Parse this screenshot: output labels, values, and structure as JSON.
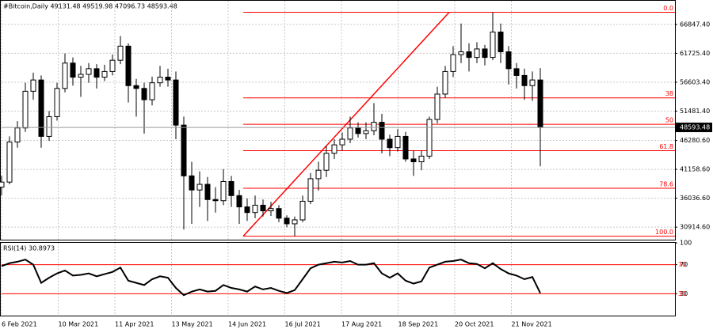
{
  "chart_data": [
    {
      "type": "candlestick",
      "title": "#Bitcoin,Daily 49131.48 49519.98 47096.73 48593.48",
      "ylim": [
        28690,
        70900
      ],
      "yticks": [
        {
          "value": 66847.4,
          "label": "66847.40"
        },
        {
          "value": 61725.4,
          "label": "61725.40"
        },
        {
          "value": 56603.4,
          "label": "56603.40"
        },
        {
          "value": 51481.4,
          "label": "51481.40"
        },
        {
          "value": 46280.6,
          "label": "46280.60"
        },
        {
          "value": 41158.6,
          "label": "41158.60"
        },
        {
          "value": 36036.6,
          "label": "36036.60"
        },
        {
          "value": 30914.6,
          "label": "30914.60"
        }
      ],
      "date_labels": [
        "6 Feb 2021",
        "10 Mar 2021",
        "11 Apr 2021",
        "13 May 2021",
        "14 Jun 2021",
        "16 Jul 2021",
        "17 Aug 2021",
        "18 Sep 2021",
        "20 Oct 2021",
        "21 Nov 2021"
      ],
      "grid": true,
      "fib_color": "#ff0000",
      "fib_levels": [
        {
          "name": "0.0",
          "price": 69000
        },
        {
          "name": "38",
          "price": 53835
        },
        {
          "name": "50",
          "price": 49150
        },
        {
          "name": "61.8",
          "price": 44465
        },
        {
          "name": "78.6",
          "price": 37800
        },
        {
          "name": "100.0",
          "price": 29300
        }
      ],
      "ohlc": [
        [
          38000,
          40000,
          36500,
          38900
        ],
        [
          38900,
          47000,
          38500,
          46000
        ],
        [
          46000,
          49700,
          45000,
          48500
        ],
        [
          48500,
          56500,
          47800,
          55000
        ],
        [
          55000,
          58300,
          53500,
          57000
        ],
        [
          57000,
          57800,
          45000,
          47000
        ],
        [
          47000,
          51500,
          46200,
          50500
        ],
        [
          50500,
          56500,
          49800,
          55500
        ],
        [
          55500,
          61700,
          54800,
          60000
        ],
        [
          60000,
          61000,
          56000,
          57500
        ],
        [
          57500,
          59500,
          54000,
          58000
        ],
        [
          58000,
          60000,
          56500,
          59000
        ],
        [
          59000,
          59800,
          55500,
          57500
        ],
        [
          57500,
          59700,
          56800,
          58500
        ],
        [
          58500,
          61500,
          57800,
          60500
        ],
        [
          60500,
          64800,
          59800,
          63000
        ],
        [
          63000,
          63500,
          53000,
          56000
        ],
        [
          56000,
          57200,
          50500,
          55500
        ],
        [
          55500,
          56500,
          47500,
          53500
        ],
        [
          53500,
          57600,
          52500,
          56500
        ],
        [
          56500,
          59500,
          55800,
          57500
        ],
        [
          57500,
          59000,
          55800,
          57000
        ],
        [
          57000,
          58500,
          46500,
          49000
        ],
        [
          49000,
          50500,
          30500,
          40000
        ],
        [
          40000,
          42500,
          31500,
          37500
        ],
        [
          37500,
          40800,
          34500,
          38500
        ],
        [
          38500,
          39800,
          32000,
          35800
        ],
        [
          35800,
          38000,
          33500,
          35600
        ],
        [
          35600,
          41200,
          34800,
          39000
        ],
        [
          39000,
          40000,
          34500,
          36500
        ],
        [
          36500,
          37500,
          31500,
          34500
        ],
        [
          34500,
          36000,
          32000,
          33500
        ],
        [
          33500,
          36500,
          32500,
          34800
        ],
        [
          34800,
          35800,
          32800,
          33800
        ],
        [
          33800,
          35400,
          32900,
          34200
        ],
        [
          34200,
          34800,
          31800,
          32500
        ],
        [
          32500,
          33000,
          30900,
          31500
        ],
        [
          31500,
          32800,
          29300,
          32200
        ],
        [
          32200,
          36500,
          31800,
          35500
        ],
        [
          35500,
          40500,
          35000,
          39500
        ],
        [
          39500,
          42500,
          37400,
          41000
        ],
        [
          41000,
          45300,
          39800,
          44000
        ],
        [
          44000,
          46500,
          43000,
          45500
        ],
        [
          45500,
          47700,
          44500,
          46500
        ],
        [
          46500,
          50500,
          45800,
          48500
        ],
        [
          48500,
          49500,
          46800,
          47500
        ],
        [
          47500,
          49500,
          46500,
          48000
        ],
        [
          48000,
          52900,
          47200,
          49500
        ],
        [
          49500,
          51000,
          44000,
          46500
        ],
        [
          46500,
          47300,
          43500,
          45000
        ],
        [
          45000,
          48300,
          44300,
          47000
        ],
        [
          47000,
          47800,
          42500,
          43000
        ],
        [
          43000,
          44500,
          40000,
          42500
        ],
        [
          42500,
          44500,
          41000,
          43500
        ],
        [
          43500,
          50500,
          43000,
          50000
        ],
        [
          50000,
          55800,
          49300,
          54500
        ],
        [
          54500,
          59500,
          53800,
          58500
        ],
        [
          58500,
          63000,
          57500,
          61500
        ],
        [
          61500,
          67000,
          60000,
          62000
        ],
        [
          62000,
          63500,
          58500,
          61000
        ],
        [
          61000,
          63700,
          60000,
          62500
        ],
        [
          62500,
          63200,
          59600,
          61000
        ],
        [
          61000,
          69000,
          60500,
          65500
        ],
        [
          65500,
          67000,
          60000,
          62000
        ],
        [
          62000,
          63000,
          56200,
          59000
        ],
        [
          59000,
          60000,
          55500,
          57800
        ],
        [
          57800,
          59000,
          53500,
          56000
        ],
        [
          56000,
          58500,
          53300,
          57000
        ],
        [
          57000,
          59100,
          41700,
          48593.48
        ]
      ]
    },
    {
      "type": "line",
      "title": "RSI(14)",
      "color": "#000000",
      "level_color": "#ff0000",
      "ylim": [
        0,
        100
      ],
      "yticks": [
        100,
        70,
        30
      ],
      "levels": [
        70,
        30
      ],
      "values": [
        68,
        72,
        74,
        77,
        70,
        45,
        52,
        58,
        62,
        55,
        56,
        58,
        54,
        57,
        60,
        66,
        48,
        45,
        42,
        50,
        54,
        52,
        38,
        28,
        33,
        36,
        33,
        34,
        42,
        38,
        36,
        33,
        40,
        36,
        38,
        34,
        31,
        35,
        50,
        65,
        70,
        72,
        74,
        73,
        75,
        70,
        70,
        72,
        58,
        52,
        58,
        48,
        44,
        47,
        66,
        70,
        74,
        75,
        77,
        72,
        71,
        65,
        72,
        64,
        58,
        55,
        50,
        53,
        30.8973
      ]
    }
  ]
}
